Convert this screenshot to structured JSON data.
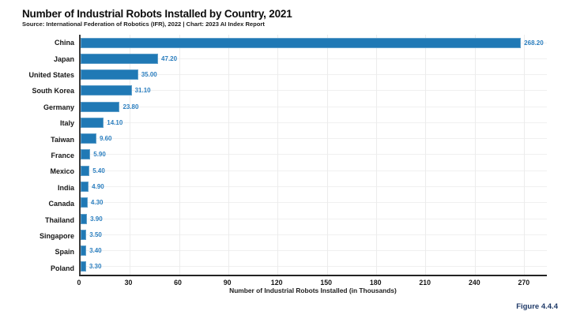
{
  "header": {
    "title": "Number of Industrial Robots Installed by Country, 2021",
    "subtitle": "Source: International Federation of Robotics (IFR), 2022 | Chart: 2023 AI Index Report"
  },
  "figure_label": "Figure 4.4.4",
  "chart_data": {
    "type": "bar",
    "orientation": "horizontal",
    "title": "Number of Industrial Robots Installed by Country, 2021",
    "categories": [
      "China",
      "Japan",
      "United States",
      "South Korea",
      "Germany",
      "Italy",
      "Taiwan",
      "France",
      "Mexico",
      "India",
      "Canada",
      "Thailand",
      "Singapore",
      "Spain",
      "Poland"
    ],
    "values": [
      268.2,
      47.2,
      35.0,
      31.1,
      23.8,
      14.1,
      9.6,
      5.9,
      5.4,
      4.9,
      4.3,
      3.9,
      3.5,
      3.4,
      3.3
    ],
    "value_labels": [
      "268.20",
      "47.20",
      "35.00",
      "31.10",
      "23.80",
      "14.10",
      "9.60",
      "5.90",
      "5.40",
      "4.90",
      "4.30",
      "3.90",
      "3.50",
      "3.40",
      "3.30"
    ],
    "xlabel": "Number of Industrial Robots Installed (in Thousands)",
    "xticks": [
      0,
      30,
      60,
      90,
      120,
      150,
      180,
      210,
      240,
      270
    ],
    "xlim": [
      0,
      284
    ],
    "grid": true,
    "legend": "none",
    "bar_color": "#2079b5",
    "value_label_color": "#2e80c0",
    "gridline_color": "#ececec"
  }
}
